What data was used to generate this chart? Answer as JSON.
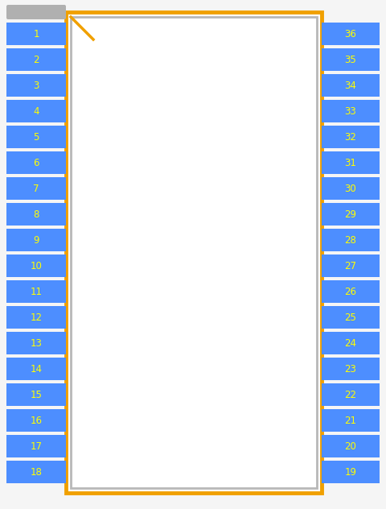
{
  "background_color": "#f5f5f5",
  "pin_color": "#4d8eff",
  "pin_text_color": "#ffff00",
  "body_fill": "#ffffff",
  "body_edge_color": "#b8b8b8",
  "body_border_color": "#f0a000",
  "notch_color": "#f0a000",
  "gray_bar_color": "#b0b0b0",
  "left_pins": [
    1,
    2,
    3,
    4,
    5,
    6,
    7,
    8,
    9,
    10,
    11,
    12,
    13,
    14,
    15,
    16,
    17,
    18
  ],
  "right_pins": [
    36,
    35,
    34,
    33,
    32,
    31,
    30,
    29,
    28,
    27,
    26,
    25,
    24,
    23,
    22,
    21,
    20,
    19
  ],
  "fig_width": 4.8,
  "fig_height": 6.32,
  "dpi": 100
}
